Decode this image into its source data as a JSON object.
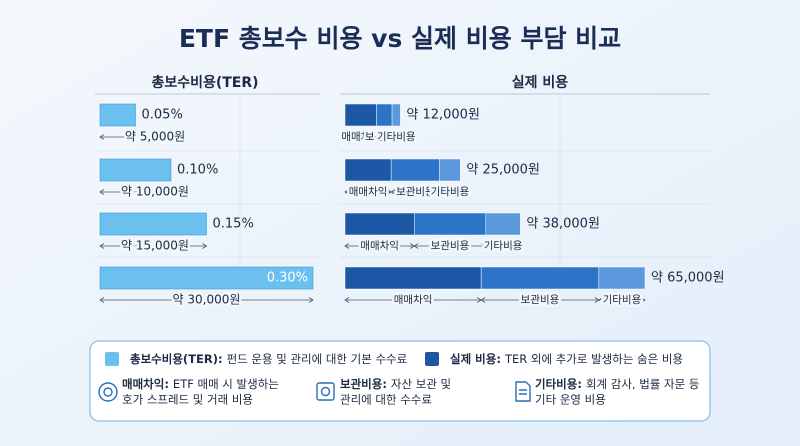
{
  "title": "ETF 총보수 비용 vs 실제 비용 부담 비교",
  "chart_data": [
    {
      "type": "bar",
      "orientation": "horizontal",
      "title": "총보수비용(TER)",
      "values": [
        0.05,
        0.1,
        0.15,
        0.3
      ],
      "value_labels": [
        "0.05%",
        "0.10%",
        "0.15%",
        "0.30%"
      ],
      "cost_labels": [
        "약 5,000원",
        "약 10,000원",
        "약 15,000원",
        "약 30,000원"
      ],
      "color": "#6cc0ef",
      "xlim": [
        0,
        0.3
      ]
    },
    {
      "type": "stacked_bar",
      "orientation": "horizontal",
      "title": "실제 비용",
      "series": [
        {
          "name": "매매차익",
          "color": "#1d58a6",
          "values": [
            6800,
            10000,
            15000,
            29500
          ]
        },
        {
          "name": "보관비용",
          "color": "#2c74c8",
          "values": [
            3400,
            10500,
            15500,
            25500
          ]
        },
        {
          "name": "기타비용",
          "color": "#5b98dc",
          "values": [
            1800,
            4500,
            7500,
            10000
          ]
        }
      ],
      "totals": [
        12000,
        25000,
        38000,
        65000
      ],
      "total_labels": [
        "약 12,000원",
        "약 25,000원",
        "약 38,000원",
        "약 65,000원"
      ],
      "xlim": [
        0,
        65000
      ]
    }
  ],
  "notes": [
    {
      "term": "총보수비용(TER):",
      "desc": [
        "펀드 운용 및 관리에 대한 기본 수수료"
      ]
    },
    {
      "term": "실제 비용:",
      "desc": [
        "TER 외에 추가로 발생하는 숨은 비용"
      ]
    },
    {
      "term": "매매차익:",
      "desc": [
        "ETF 매매 시 발생하는",
        "호가 스프레드 및 거래 비용"
      ]
    },
    {
      "term": "보관비용:",
      "desc": [
        "자산 보관 및",
        "관리에 대한 수수료"
      ]
    },
    {
      "term": "기타비용:",
      "desc": [
        "회계 감사, 법률 자문 등",
        "기타 운영 비용"
      ]
    }
  ]
}
